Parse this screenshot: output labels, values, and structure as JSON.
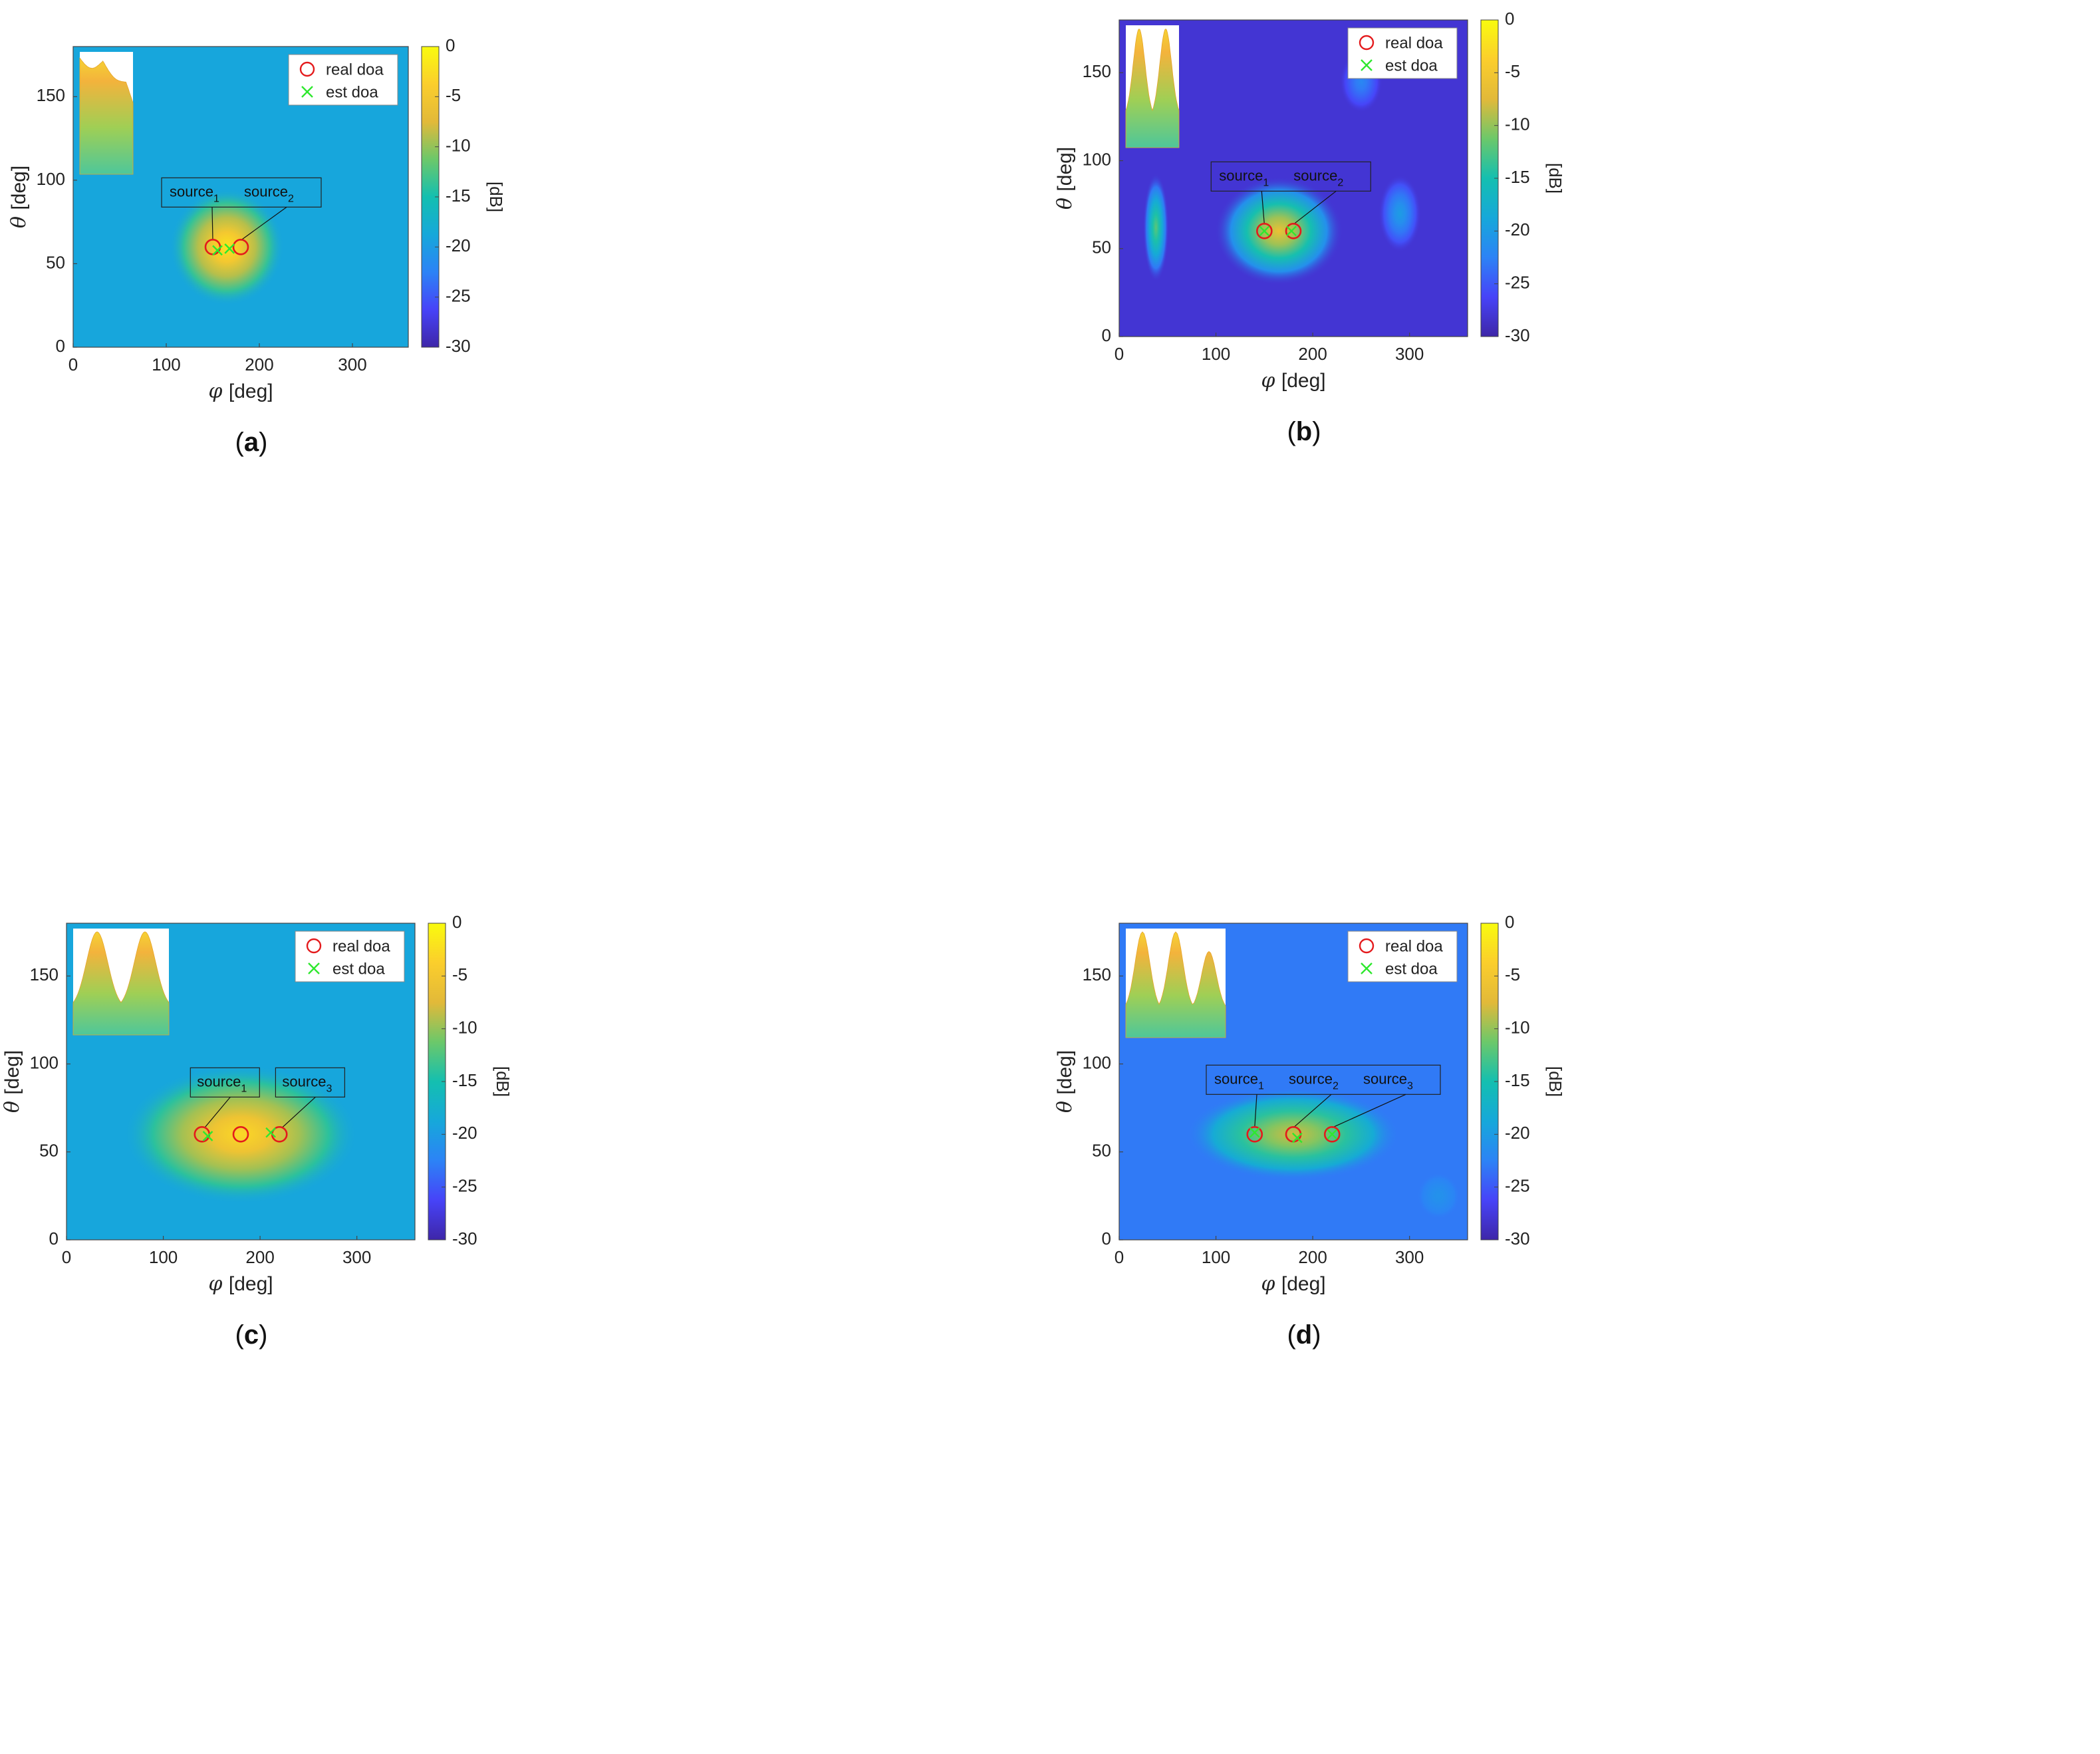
{
  "chart_data": [
    {
      "type": "heatmap",
      "panel_label": "a",
      "xlabel": "[deg]",
      "xlabel_symbol": "φ",
      "ylabel": "[deg]",
      "ylabel_symbol": "θ",
      "xlim": [
        0,
        360
      ],
      "ylim": [
        0,
        180
      ],
      "xticks": [
        0,
        100,
        200,
        300
      ],
      "yticks": [
        0,
        50,
        100,
        150
      ],
      "colorbar": {
        "label": "[dB]",
        "range": [
          -30,
          0
        ],
        "ticks": [
          0,
          -5,
          -10,
          -15,
          -20,
          -25,
          -30
        ]
      },
      "background_level_db": -19,
      "hotspots": [
        {
          "phi": 165,
          "theta": 60,
          "peak_db": -2,
          "spread_phi": 28,
          "spread_theta": 16
        }
      ],
      "real_doa": [
        {
          "phi": 150,
          "theta": 60
        },
        {
          "phi": 180,
          "theta": 60
        }
      ],
      "est_doa": [
        {
          "phi": 155,
          "theta": 58
        },
        {
          "phi": 168,
          "theta": 59
        }
      ],
      "annotation_box": {
        "sources": [
          {
            "name": "source",
            "sub": "1",
            "phi": 150,
            "theta": 60
          },
          {
            "name": "source",
            "sub": "2",
            "phi": 180,
            "theta": 60
          }
        ]
      },
      "legend": {
        "location": "top-right",
        "items": [
          "real doa",
          "est doa"
        ]
      },
      "inset_peaks": 2
    },
    {
      "type": "heatmap",
      "panel_label": "b",
      "xlabel": "[deg]",
      "xlabel_symbol": "φ",
      "ylabel": "[deg]",
      "ylabel_symbol": "θ",
      "xlim": [
        0,
        360
      ],
      "ylim": [
        0,
        180
      ],
      "xticks": [
        0,
        100,
        200,
        300
      ],
      "yticks": [
        0,
        50,
        100,
        150
      ],
      "colorbar": {
        "label": "[dB]",
        "range": [
          -30,
          0
        ],
        "ticks": [
          0,
          -5,
          -10,
          -15,
          -20,
          -25,
          -30
        ]
      },
      "background_level_db": -28,
      "hotspots": [
        {
          "phi": 165,
          "theta": 60,
          "peak_db": -6,
          "spread_phi": 30,
          "spread_theta": 14
        },
        {
          "phi": 38,
          "theta": 62,
          "peak_db": -12,
          "spread_phi": 6,
          "spread_theta": 14
        },
        {
          "phi": 290,
          "theta": 70,
          "peak_db": -20,
          "spread_phi": 10,
          "spread_theta": 10
        },
        {
          "phi": 250,
          "theta": 145,
          "peak_db": -22,
          "spread_phi": 10,
          "spread_theta": 8
        }
      ],
      "real_doa": [
        {
          "phi": 150,
          "theta": 60
        },
        {
          "phi": 180,
          "theta": 60
        }
      ],
      "est_doa": [
        {
          "phi": 150,
          "theta": 60
        },
        {
          "phi": 178,
          "theta": 60
        }
      ],
      "annotation_box": {
        "sources": [
          {
            "name": "source",
            "sub": "1",
            "phi": 150,
            "theta": 60
          },
          {
            "name": "source",
            "sub": "2",
            "phi": 180,
            "theta": 60
          }
        ]
      },
      "legend": {
        "location": "top-right",
        "items": [
          "real doa",
          "est doa"
        ]
      },
      "inset_peaks": 2
    },
    {
      "type": "heatmap",
      "panel_label": "c",
      "xlabel": "[deg]",
      "xlabel_symbol": "φ",
      "ylabel": "[deg]",
      "ylabel_symbol": "θ",
      "xlim": [
        0,
        360
      ],
      "ylim": [
        0,
        180
      ],
      "xticks": [
        0,
        100,
        200,
        300
      ],
      "yticks": [
        0,
        50,
        100,
        150
      ],
      "colorbar": {
        "label": "[dB]",
        "range": [
          -30,
          0
        ],
        "ticks": [
          0,
          -5,
          -10,
          -15,
          -20,
          -25,
          -30
        ]
      },
      "background_level_db": -19,
      "hotspots": [
        {
          "phi": 180,
          "theta": 60,
          "peak_db": -3,
          "spread_phi": 55,
          "spread_theta": 18
        }
      ],
      "real_doa": [
        {
          "phi": 140,
          "theta": 60
        },
        {
          "phi": 180,
          "theta": 60
        },
        {
          "phi": 220,
          "theta": 60
        }
      ],
      "est_doa": [
        {
          "phi": 146,
          "theta": 59
        },
        {
          "phi": 211,
          "theta": 61
        }
      ],
      "annotation_box": {
        "sources": [
          {
            "name": "source",
            "sub": "1",
            "phi": 140,
            "theta": 60
          },
          {
            "name": "source",
            "sub": "3",
            "phi": 220,
            "theta": 60
          }
        ]
      },
      "legend": {
        "location": "top-right",
        "items": [
          "real doa",
          "est doa"
        ]
      },
      "inset_peaks": 2
    },
    {
      "type": "heatmap",
      "panel_label": "d",
      "xlabel": "[deg]",
      "xlabel_symbol": "φ",
      "ylabel": "[deg]",
      "ylabel_symbol": "θ",
      "xlim": [
        0,
        360
      ],
      "ylim": [
        0,
        180
      ],
      "xticks": [
        0,
        100,
        200,
        300
      ],
      "yticks": [
        0,
        50,
        100,
        150
      ],
      "colorbar": {
        "label": "[dB]",
        "range": [
          -30,
          0
        ],
        "ticks": [
          0,
          -5,
          -10,
          -15,
          -20,
          -25,
          -30
        ]
      },
      "background_level_db": -23,
      "hotspots": [
        {
          "phi": 180,
          "theta": 60,
          "peak_db": -8,
          "spread_phi": 50,
          "spread_theta": 12
        },
        {
          "phi": 330,
          "theta": 25,
          "peak_db": -21,
          "spread_phi": 10,
          "spread_theta": 6
        }
      ],
      "real_doa": [
        {
          "phi": 140,
          "theta": 60
        },
        {
          "phi": 180,
          "theta": 60
        },
        {
          "phi": 220,
          "theta": 60
        }
      ],
      "est_doa": [
        {
          "phi": 140,
          "theta": 61
        },
        {
          "phi": 184,
          "theta": 58
        },
        {
          "phi": 220,
          "theta": 60
        }
      ],
      "annotation_box": {
        "sources": [
          {
            "name": "source",
            "sub": "1",
            "phi": 140,
            "theta": 60
          },
          {
            "name": "source",
            "sub": "2",
            "phi": 180,
            "theta": 60
          },
          {
            "name": "source",
            "sub": "3",
            "phi": 220,
            "theta": 60
          }
        ]
      },
      "legend": {
        "location": "top-right",
        "items": [
          "real doa",
          "est doa"
        ]
      },
      "inset_peaks": 3
    }
  ],
  "colormap": [
    "#3e26a8",
    "#4743f8",
    "#2c83f6",
    "#16a8da",
    "#14bfb0",
    "#6cc86a",
    "#e2b939",
    "#fbce2c",
    "#f9fb0e"
  ]
}
